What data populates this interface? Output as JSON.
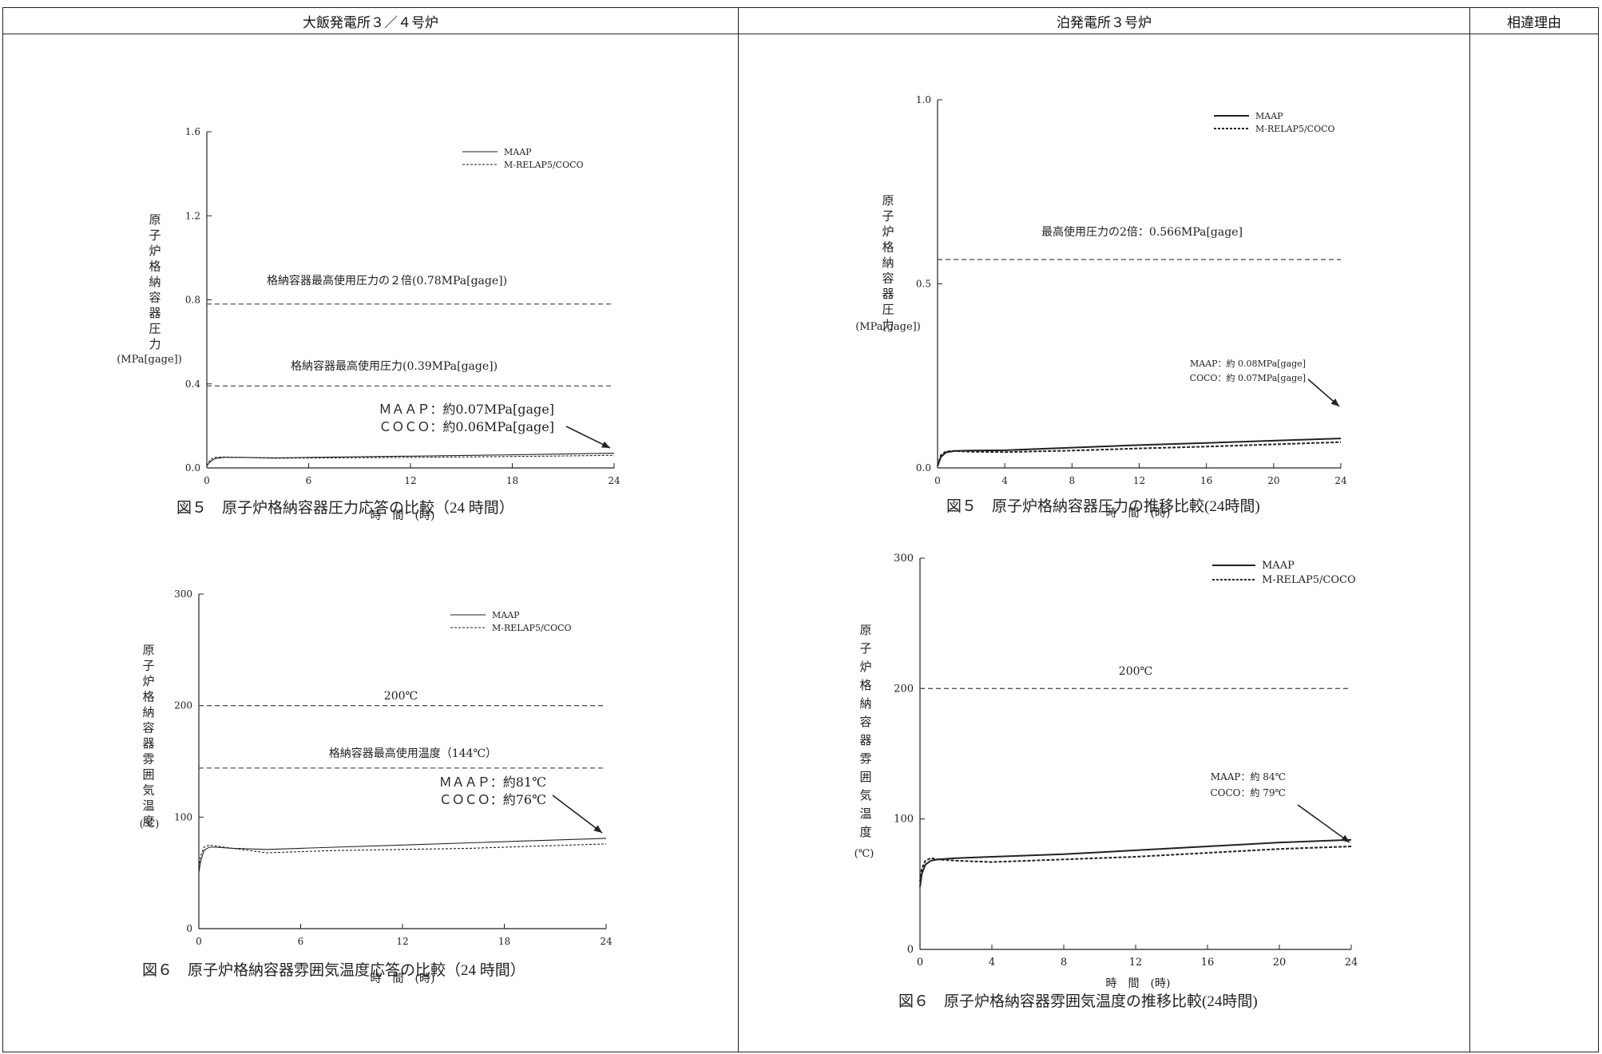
{
  "header": {
    "top_note": "",
    "col1": "大飯発電所３／４号炉",
    "col2": "泊発電所３号炉",
    "col3": "相違理由"
  },
  "captions": {
    "fig5_left": "図５　原子炉格納容器圧力応答の比較（24 時間）",
    "fig6_left": "図６　原子炉格納容器雰囲気温度応答の比較（24 時間）",
    "fig5_right": "図５　原子炉格納容器圧力の推移比較(24時間)",
    "fig6_right": "図６　原子炉格納容器雰囲気温度の推移比較(24時間)"
  },
  "colors": {
    "line": "#222222",
    "dashed_ref": "#555555"
  },
  "chart_data": [
    {
      "id": "ohi_pressure",
      "type": "line",
      "xlabel": "時　間　(時)",
      "ylabel_chars": [
        "原",
        "子",
        "炉",
        "格",
        "納",
        "容",
        "器",
        "圧",
        "力"
      ],
      "yunit": "(MPa[gage])",
      "xlim": [
        0,
        24
      ],
      "ylim": [
        0,
        1.6
      ],
      "xticks": [
        0,
        6,
        12,
        18,
        24
      ],
      "yticks": [
        0.0,
        0.4,
        0.8,
        1.2,
        1.6
      ],
      "ytick_labels": [
        "0.0",
        "0.4",
        "0.8",
        "1.2",
        "1.6"
      ],
      "legend": [
        "MAAP",
        "M-RELAP5/COCO"
      ],
      "reference_lines": [
        {
          "y": 0.78,
          "label": "格納容器最高使用圧力の２倍(0.78MPa[gage])"
        },
        {
          "y": 0.39,
          "label": "格納容器最高使用圧力(0.39MPa[gage])"
        }
      ],
      "annotation": [
        "ＭＡＡＰ：約0.07MPa[gage]",
        "ＣＯＣＯ：約0.06MPa[gage]"
      ],
      "series": [
        {
          "name": "MAAP",
          "x": [
            0,
            0.2,
            0.5,
            1,
            2,
            4,
            6,
            8,
            12,
            16,
            20,
            24
          ],
          "y": [
            0.01,
            0.03,
            0.045,
            0.05,
            0.05,
            0.048,
            0.05,
            0.052,
            0.056,
            0.06,
            0.065,
            0.07
          ]
        },
        {
          "name": "M-RELAP5/COCO",
          "x": [
            0,
            0.2,
            0.5,
            1,
            2,
            4,
            6,
            8,
            12,
            16,
            20,
            24
          ],
          "y": [
            0.01,
            0.04,
            0.05,
            0.052,
            0.05,
            0.046,
            0.047,
            0.048,
            0.05,
            0.053,
            0.056,
            0.06
          ]
        }
      ]
    },
    {
      "id": "tomari_pressure",
      "type": "line",
      "xlabel": "時　間　(時)",
      "ylabel_chars": [
        "原",
        "子",
        "炉",
        "格",
        "納",
        "容",
        "器",
        "圧",
        "力"
      ],
      "yunit": "(MPa[gage])",
      "xlim": [
        0,
        24
      ],
      "ylim": [
        0,
        1.0
      ],
      "xticks": [
        0,
        4,
        8,
        12,
        16,
        20,
        24
      ],
      "yticks": [
        0.0,
        0.5,
        1.0
      ],
      "ytick_labels": [
        "0.0",
        "0.5",
        "1.0"
      ],
      "legend": [
        "MAAP",
        "M-RELAP5/COCO"
      ],
      "reference_lines": [
        {
          "y": 0.566,
          "label": "最高使用圧力の2倍：0.566MPa[gage]"
        }
      ],
      "annotation": [
        "MAAP：約 0.08MPa[gage]",
        "COCO：約 0.07MPa[gage]"
      ],
      "series": [
        {
          "name": "MAAP",
          "x": [
            0,
            0.2,
            0.5,
            1,
            2,
            4,
            8,
            12,
            16,
            20,
            24
          ],
          "y": [
            0.005,
            0.03,
            0.042,
            0.046,
            0.047,
            0.048,
            0.055,
            0.062,
            0.068,
            0.074,
            0.08
          ]
        },
        {
          "name": "M-RELAP5/COCO",
          "x": [
            0,
            0.2,
            0.5,
            1,
            2,
            4,
            8,
            12,
            16,
            20,
            24
          ],
          "y": [
            0.005,
            0.035,
            0.045,
            0.046,
            0.044,
            0.043,
            0.047,
            0.053,
            0.058,
            0.064,
            0.07
          ]
        }
      ]
    },
    {
      "id": "ohi_temperature",
      "type": "line",
      "xlabel": "時　間　(時)",
      "ylabel_chars": [
        "原",
        "子",
        "炉",
        "格",
        "納",
        "容",
        "器",
        "雰",
        "囲",
        "気",
        "温",
        "度"
      ],
      "yunit": "(℃)",
      "xlim": [
        0,
        24
      ],
      "ylim": [
        0,
        300
      ],
      "xticks": [
        0,
        6,
        12,
        18,
        24
      ],
      "yticks": [
        0,
        100,
        200,
        300
      ],
      "ytick_labels": [
        "0",
        "100",
        "200",
        "300"
      ],
      "legend": [
        "MAAP",
        "M-RELAP5/COCO"
      ],
      "reference_lines": [
        {
          "y": 200,
          "label": "200℃"
        },
        {
          "y": 144,
          "label": "格納容器最高使用温度（144℃）"
        }
      ],
      "annotation": [
        "ＭＡＡＰ：約81℃",
        "ＣＯＣＯ：約76℃"
      ],
      "series": [
        {
          "name": "MAAP",
          "x": [
            0,
            0.1,
            0.3,
            0.6,
            1,
            2,
            4,
            6,
            8,
            12,
            16,
            20,
            24
          ],
          "y": [
            50,
            60,
            70,
            73,
            73,
            72,
            71,
            72,
            73,
            75,
            77,
            79,
            81
          ]
        },
        {
          "name": "M-RELAP5/COCO",
          "x": [
            0,
            0.1,
            0.3,
            0.6,
            1,
            2,
            4,
            6,
            8,
            12,
            16,
            20,
            24
          ],
          "y": [
            55,
            65,
            73,
            75,
            74,
            72,
            68,
            69,
            70,
            71,
            72,
            74,
            76
          ]
        }
      ]
    },
    {
      "id": "tomari_temperature",
      "type": "line",
      "xlabel": "時　間　(時)",
      "ylabel_chars": [
        "原",
        "子",
        "炉",
        "格",
        "納",
        "容",
        "器",
        "雰",
        "囲",
        "気",
        "温",
        "度"
      ],
      "yunit": "(℃)",
      "xlim": [
        0,
        24
      ],
      "ylim": [
        0,
        300
      ],
      "xticks": [
        0,
        4,
        8,
        12,
        16,
        20,
        24
      ],
      "yticks": [
        0,
        100,
        200,
        300
      ],
      "ytick_labels": [
        "0",
        "100",
        "200",
        "300"
      ],
      "legend": [
        "MAAP",
        "M-RELAP5/COCO"
      ],
      "reference_lines": [
        {
          "y": 200,
          "label": "200℃"
        }
      ],
      "annotation": [
        "MAAP：約 84℃",
        "COCO：約 79℃"
      ],
      "series": [
        {
          "name": "MAAP",
          "x": [
            0,
            0.1,
            0.3,
            0.6,
            1,
            2,
            4,
            8,
            12,
            16,
            20,
            24
          ],
          "y": [
            48,
            58,
            65,
            68,
            69,
            70,
            71,
            73,
            76,
            79,
            82,
            84
          ]
        },
        {
          "name": "M-RELAP5/COCO",
          "x": [
            0,
            0.1,
            0.3,
            0.6,
            1,
            2,
            4,
            8,
            12,
            16,
            20,
            24
          ],
          "y": [
            52,
            62,
            68,
            70,
            69,
            68,
            67,
            69,
            71,
            74,
            77,
            79
          ]
        }
      ]
    }
  ]
}
